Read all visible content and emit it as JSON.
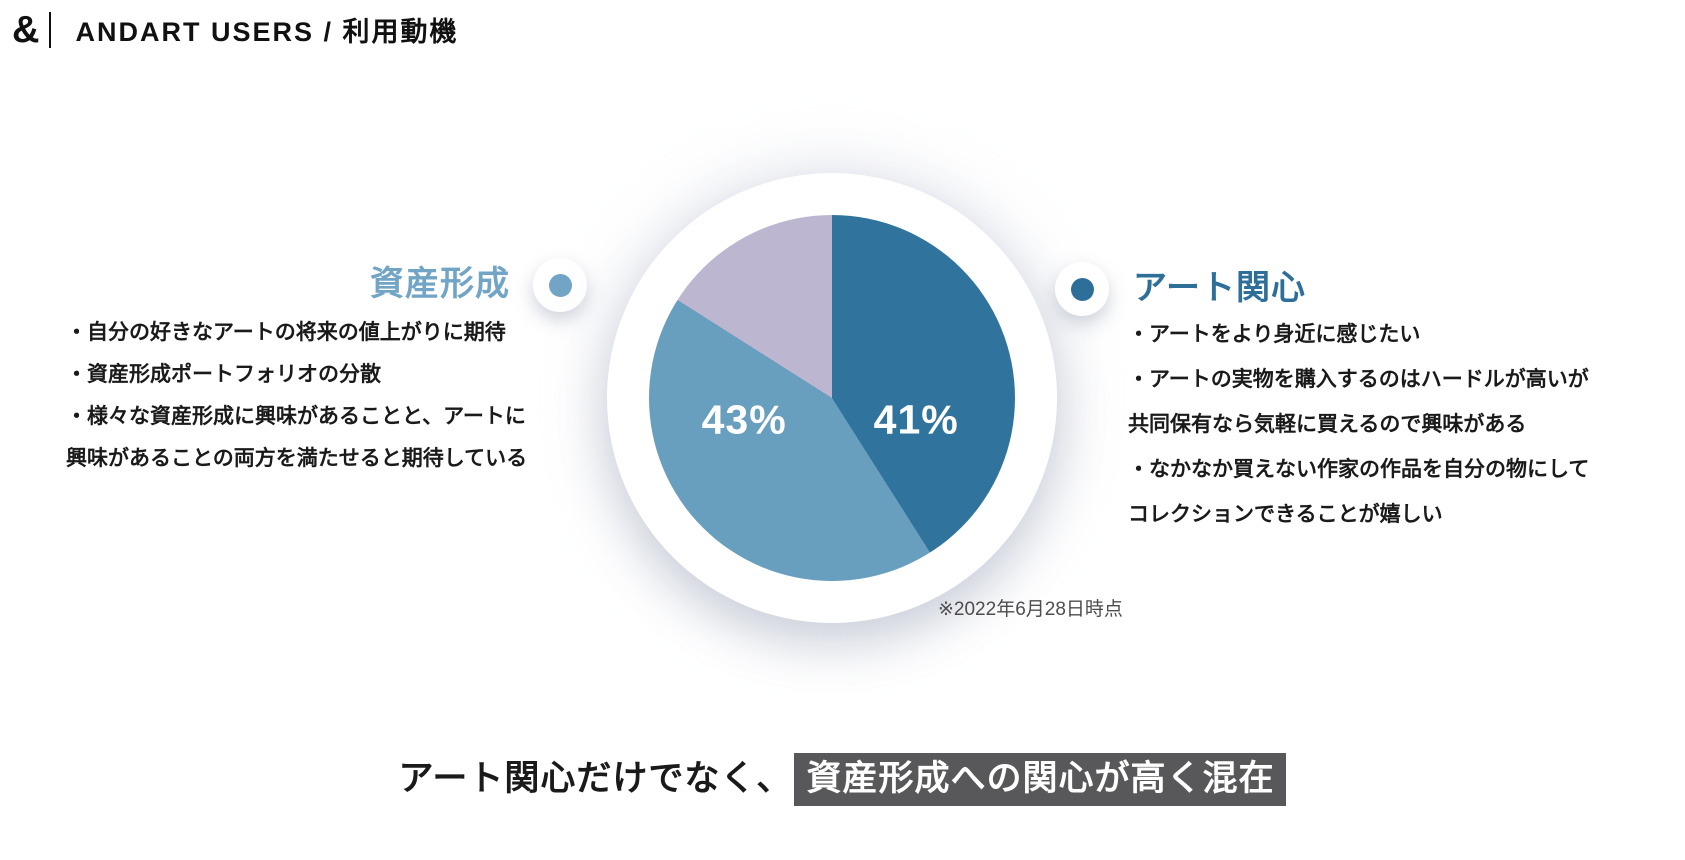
{
  "header": {
    "logo": "&",
    "title": "ANDART USERS / 利用動機"
  },
  "left_section": {
    "title": "資産形成",
    "accent_color": "#72A4C6",
    "lines": [
      "・自分の好きなアートの将来の値上がりに期待",
      "・資産形成ポートフォリオの分散",
      "・様々な資産形成に興味があることと、アートに",
      "興味があることの両方を満たせると期待している"
    ]
  },
  "right_section": {
    "title": "アート関心",
    "accent_color": "#2E6F9A",
    "lines": [
      "・アートをより身近に感じたい",
      "・アートの実物を購入するのはハードルが高いが",
      "共同保有なら気軽に買えるので興味がある",
      "・なかなか買えない作家の作品を自分の物にして",
      "コレクションできることが嬉しい"
    ]
  },
  "footnote": "※2022年6月28日時点",
  "conclusion": {
    "plain": "アート関心だけでなく、",
    "highlight": "資産形成への関心が高く混在",
    "highlight_bg": "#58585A"
  },
  "chart_data": {
    "type": "pie",
    "direction": "clockwise",
    "start_angle_deg": 0,
    "label_color": "#FFFFFF",
    "slices": [
      {
        "label": "アート関心",
        "value": 41,
        "color": "#30749E",
        "display": "41%"
      },
      {
        "label": "資産形成",
        "value": 43,
        "color": "#689FBE",
        "display": "43%"
      },
      {
        "label": "",
        "value": 16,
        "color": "#BCB6D1",
        "display": ""
      }
    ],
    "note": "※2022年6月28日時点"
  }
}
